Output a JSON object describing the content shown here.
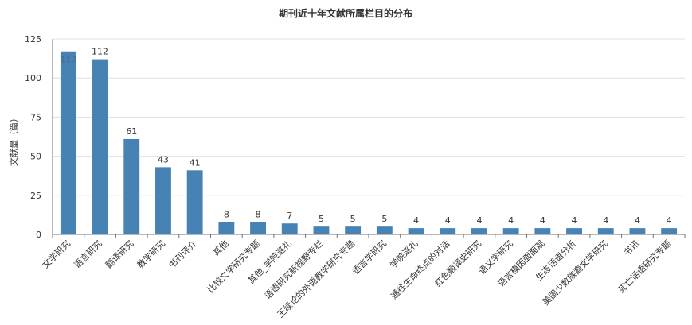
{
  "chart_data": {
    "type": "bar",
    "title": "期刊近十年文献所属栏目的分布",
    "xlabel": "",
    "ylabel": "文献量（篇）",
    "ylim": [
      0,
      125
    ],
    "yticks": [
      0,
      25,
      50,
      75,
      100,
      125
    ],
    "grid": true,
    "categories": [
      "文学研究",
      "语言研究",
      "翻译研究",
      "教学研究",
      "书刊评介",
      "其他",
      "比较文学研究专题",
      "其他_学院巡礼",
      "语语研究新视野专栏",
      "王续论的外语教学研究专题",
      "语言学研究",
      "学院巡礼",
      "通往生命终点的对话",
      "红色翻译史研究",
      "语义学研究",
      "语言模因面面观",
      "生态话语分析",
      "美国少数族裔文学研究",
      "书讯",
      "死亡话语研究专题"
    ],
    "values": [
      117,
      112,
      61,
      43,
      41,
      8,
      8,
      7,
      5,
      5,
      5,
      4,
      4,
      4,
      4,
      4,
      4,
      4,
      4,
      4
    ],
    "colors": {
      "bar": "#4682b4",
      "first_label": "#4a6a8a",
      "axis": "#6e7079",
      "grid": "#e0e0e0",
      "text": "#333333"
    }
  }
}
